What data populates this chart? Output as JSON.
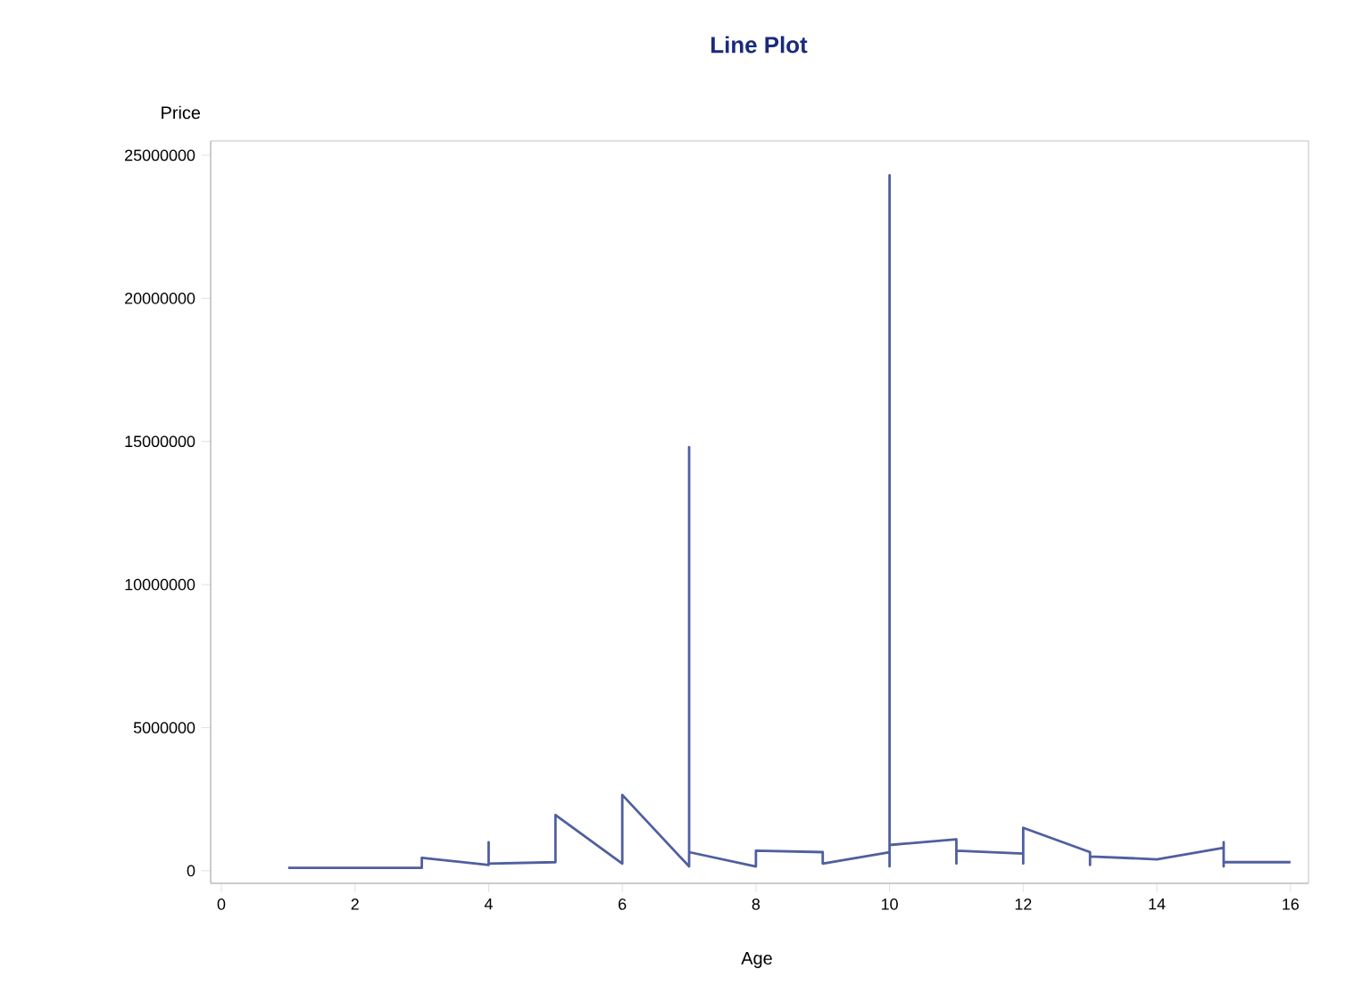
{
  "chart_data": {
    "type": "line",
    "title": "Line Plot",
    "xlabel": "Age",
    "ylabel": "Price",
    "x": [
      1,
      3,
      3,
      4,
      4,
      4,
      5,
      5,
      6,
      6,
      7,
      7,
      7,
      8,
      8,
      9,
      9,
      10,
      10,
      10,
      10,
      11,
      11,
      11,
      12,
      12,
      12,
      13,
      13,
      13,
      14,
      15,
      15,
      15,
      15,
      16
    ],
    "series": [
      {
        "color": "#4f5f9f",
        "values": [
          100000,
          100000,
          450000,
          200000,
          1000000,
          250000,
          300000,
          1950000,
          250000,
          2650000,
          150000,
          14800000,
          650000,
          150000,
          700000,
          650000,
          250000,
          650000,
          150000,
          24300000,
          900000,
          1100000,
          250000,
          700000,
          600000,
          250000,
          1500000,
          650000,
          200000,
          500000,
          400000,
          800000,
          1000000,
          150000,
          300000,
          300000
        ]
      }
    ],
    "xlim": [
      -0.16,
      16.27
    ],
    "ylim": [
      -440000,
      25500000
    ],
    "xticks": [
      0,
      2,
      4,
      6,
      8,
      10,
      12,
      14,
      16
    ],
    "yticks": [
      0,
      5000000,
      10000000,
      15000000,
      20000000,
      25000000
    ],
    "grid": false,
    "marker": "none",
    "line_style": "solid"
  }
}
